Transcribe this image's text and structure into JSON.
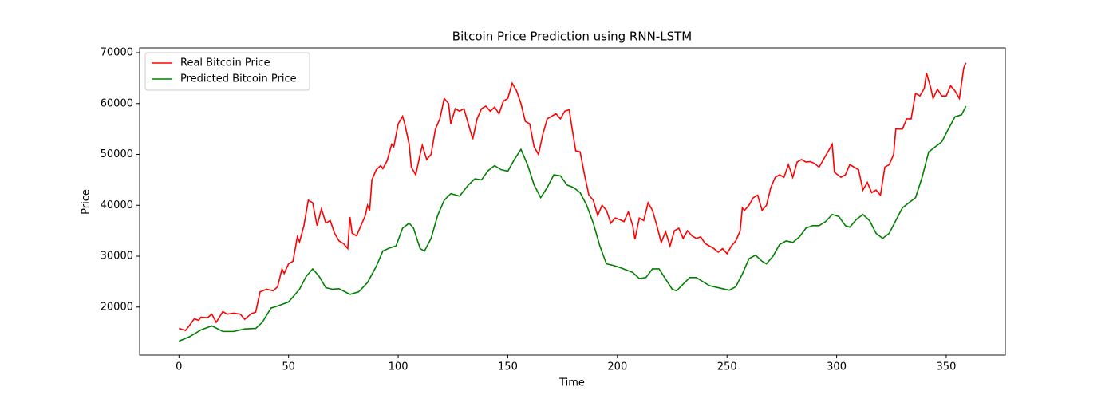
{
  "chart_data": {
    "type": "line",
    "title": "Bitcoin Price Prediction using RNN-LSTM",
    "xlabel": "Time",
    "ylabel": "Price",
    "xlim": [
      -17.95,
      376.95
    ],
    "ylim": [
      10555,
      70945
    ],
    "xticks": [
      0,
      50,
      100,
      150,
      200,
      250,
      300,
      350
    ],
    "yticks": [
      20000,
      30000,
      40000,
      50000,
      60000,
      70000
    ],
    "legend": "upper left",
    "series": [
      {
        "name": "Real Bitcoin Price",
        "color": "#ff0000",
        "x": [
          0,
          3,
          5,
          7,
          9,
          10,
          13,
          15,
          17,
          20,
          22,
          25,
          28,
          30,
          33,
          35,
          37,
          40,
          43,
          45,
          47,
          48,
          50,
          52,
          54,
          55,
          57,
          59,
          61,
          63,
          65,
          67,
          69,
          71,
          73,
          75,
          77,
          78,
          79,
          81,
          83,
          85,
          86,
          87,
          88,
          90,
          92,
          93,
          95,
          97,
          98,
          100,
          102,
          103,
          105,
          106,
          108,
          110,
          111,
          113,
          115,
          117,
          119,
          121,
          123,
          124,
          126,
          128,
          130,
          132,
          134,
          136,
          138,
          140,
          142,
          144,
          146,
          148,
          150,
          152,
          154,
          156,
          158,
          160,
          162,
          164,
          166,
          168,
          170,
          172,
          174,
          176,
          178,
          179,
          181,
          183,
          185,
          187,
          189,
          191,
          193,
          195,
          197,
          199,
          201,
          203,
          205,
          207,
          208,
          210,
          212,
          214,
          216,
          218,
          220,
          222,
          224,
          226,
          228,
          230,
          232,
          234,
          236,
          238,
          240,
          242,
          244,
          246,
          248,
          250,
          252,
          254,
          256,
          257,
          258,
          260,
          262,
          264,
          266,
          268,
          270,
          272,
          274,
          276,
          278,
          280,
          282,
          284,
          286,
          288,
          290,
          292,
          294,
          296,
          298,
          299,
          302,
          304,
          306,
          308,
          310,
          312,
          314,
          316,
          318,
          320,
          322,
          324,
          326,
          327,
          330,
          332,
          334,
          336,
          338,
          340,
          341,
          343,
          344,
          346,
          348,
          350,
          352,
          354,
          356,
          358,
          359
        ],
        "values": [
          15800,
          15400,
          16500,
          17700,
          17400,
          18000,
          17900,
          18600,
          17000,
          19100,
          18600,
          18800,
          18600,
          17600,
          18700,
          19000,
          23000,
          23500,
          23200,
          24000,
          27500,
          26600,
          28500,
          29000,
          33800,
          32800,
          36000,
          41000,
          40500,
          36000,
          39300,
          36500,
          37000,
          34500,
          33000,
          32500,
          31500,
          37700,
          34500,
          34000,
          36000,
          38000,
          40000,
          39000,
          45000,
          47000,
          47800,
          47200,
          48800,
          52000,
          51500,
          56000,
          57500,
          56000,
          52000,
          47500,
          46000,
          50000,
          51800,
          49000,
          50000,
          55000,
          57000,
          61000,
          60000,
          56000,
          59000,
          58500,
          59000,
          56000,
          53000,
          57000,
          59000,
          59500,
          58500,
          59300,
          58000,
          60500,
          61000,
          64000,
          62500,
          60000,
          56500,
          56000,
          51500,
          50000,
          54000,
          57000,
          57500,
          58000,
          57000,
          58500,
          58800,
          56000,
          50700,
          50500,
          46000,
          42000,
          41000,
          38000,
          40000,
          39000,
          36500,
          37500,
          37200,
          36800,
          38700,
          36000,
          33300,
          37500,
          37000,
          40500,
          39000,
          36000,
          32700,
          34800,
          32000,
          35000,
          35500,
          33500,
          35000,
          34000,
          33500,
          33800,
          32500,
          32000,
          31500,
          30800,
          31500,
          30500,
          32000,
          33000,
          35000,
          39500,
          39000,
          40000,
          41500,
          42000,
          39000,
          40000,
          43500,
          45500,
          46000,
          45500,
          48000,
          45500,
          48500,
          49000,
          48500,
          48600,
          48200,
          47500,
          49000,
          50500,
          52000,
          46500,
          45500,
          46000,
          48000,
          47500,
          47000,
          43000,
          44500,
          42500,
          43000,
          42000,
          47500,
          48000,
          50000,
          55000,
          55000,
          57000,
          57000,
          62000,
          61500,
          63000,
          66000,
          63000,
          61000,
          62800,
          61500,
          61500,
          63500,
          62500,
          61000,
          67000,
          68000
        ]
      },
      {
        "name": "Predicted Bitcoin Price",
        "color": "#008000",
        "x": [
          0,
          5,
          10,
          15,
          20,
          25,
          30,
          35,
          38,
          42,
          45,
          50,
          55,
          58,
          61,
          64,
          67,
          70,
          73,
          78,
          82,
          86,
          90,
          93,
          96,
          99,
          102,
          105,
          107,
          110,
          112,
          115,
          118,
          121,
          124,
          128,
          132,
          135,
          138,
          141,
          144,
          147,
          150,
          153,
          156,
          159,
          162,
          165,
          168,
          171,
          174,
          177,
          180,
          183,
          186,
          189,
          192,
          195,
          198,
          201,
          204,
          207,
          210,
          213,
          216,
          219,
          222,
          225,
          227,
          230,
          233,
          236,
          239,
          242,
          245,
          248,
          251,
          254,
          257,
          260,
          263,
          266,
          268,
          271,
          274,
          277,
          280,
          283,
          286,
          289,
          292,
          295,
          298,
          301,
          304,
          306,
          309,
          312,
          315,
          318,
          321,
          324,
          327,
          330,
          333,
          336,
          339,
          342,
          345,
          348,
          351,
          354,
          357,
          359
        ],
        "values": [
          13300,
          14200,
          15500,
          16300,
          15200,
          15200,
          15700,
          15800,
          17000,
          19800,
          20200,
          21000,
          23500,
          26000,
          27500,
          26000,
          23800,
          23500,
          23600,
          22500,
          23000,
          24800,
          28000,
          31000,
          31600,
          32000,
          35500,
          36500,
          35500,
          31500,
          31000,
          33500,
          38000,
          41000,
          42300,
          41800,
          44000,
          45200,
          45000,
          46800,
          47800,
          47000,
          46700,
          49000,
          51000,
          48000,
          44000,
          41500,
          43500,
          46000,
          45800,
          44000,
          43500,
          42500,
          40000,
          36500,
          32000,
          28500,
          28200,
          27800,
          27300,
          26800,
          25600,
          25800,
          27500,
          27500,
          25500,
          23500,
          23200,
          24500,
          25800,
          25800,
          25000,
          24200,
          23900,
          23600,
          23300,
          24000,
          26500,
          29500,
          30200,
          29000,
          28500,
          30000,
          32300,
          33000,
          32700,
          33800,
          35500,
          36000,
          36000,
          36800,
          38200,
          37800,
          36000,
          35700,
          37200,
          38200,
          37000,
          34500,
          33500,
          34500,
          37000,
          39500,
          40500,
          41500,
          45500,
          50500,
          51500,
          52500,
          55000,
          57400,
          57800,
          59500
        ]
      }
    ]
  }
}
